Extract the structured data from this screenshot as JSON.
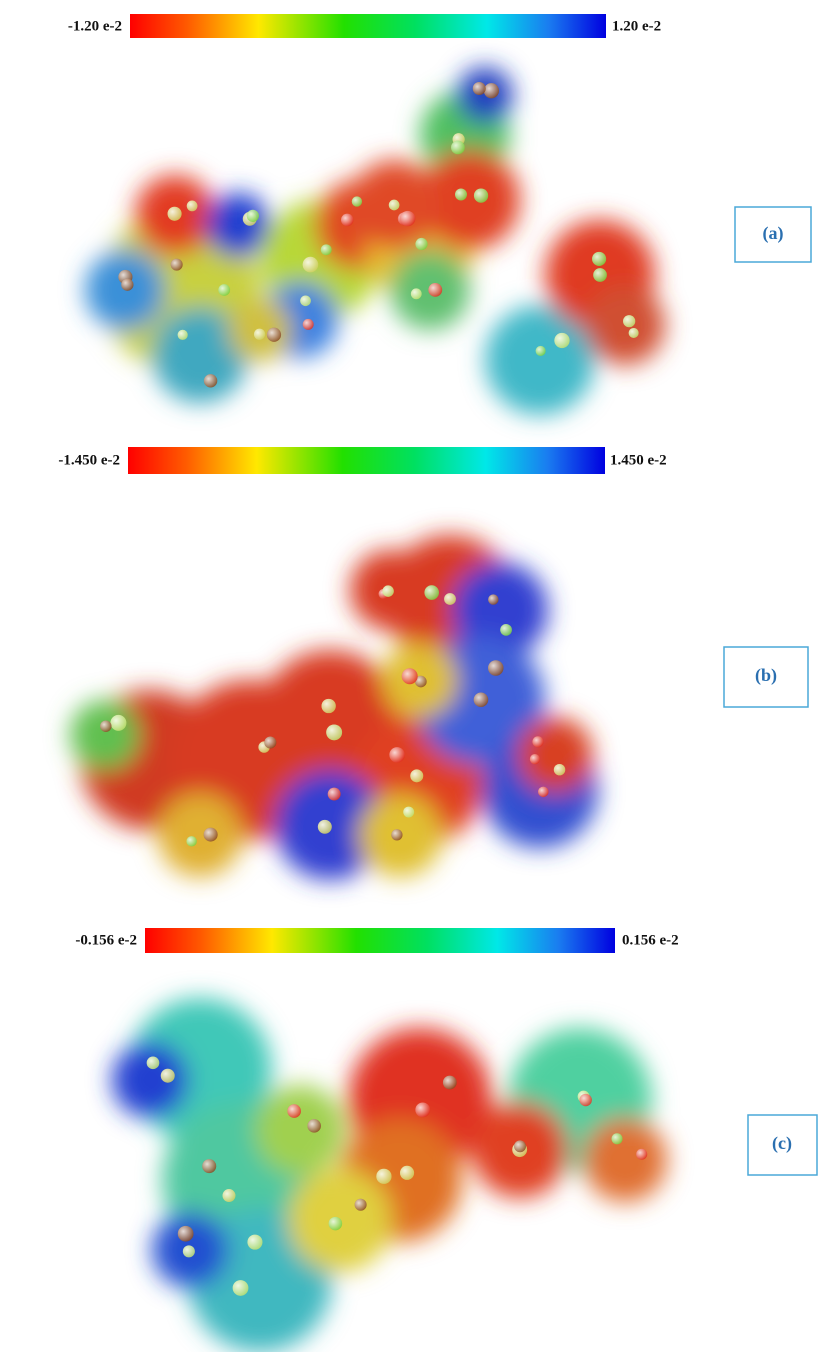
{
  "panels": [
    {
      "scale_min": "-1.20 e-2",
      "scale_max": "1.20 e-2",
      "label": "(a)"
    },
    {
      "scale_min": "-1.450 e-2",
      "scale_max": "1.450 e-2",
      "label": "(b)"
    },
    {
      "scale_min": "-0.156 e-2",
      "scale_max": "0.156 e-2",
      "label": "(c)"
    }
  ]
}
